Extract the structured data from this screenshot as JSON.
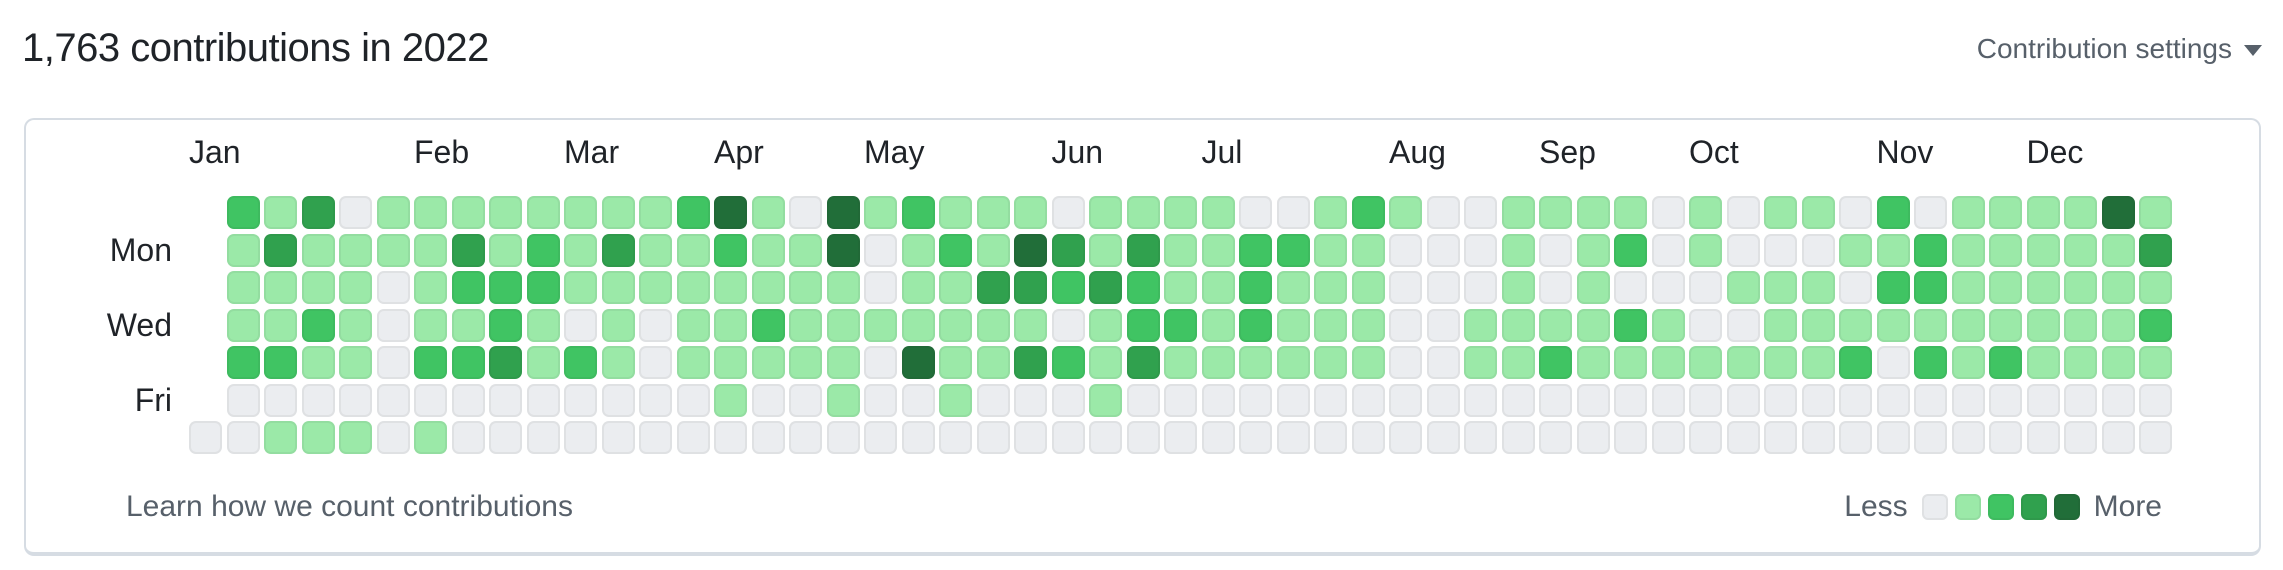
{
  "header": {
    "title": "1,763 contributions in 2022",
    "settings_label": "Contribution settings"
  },
  "footer": {
    "learn_link": "Learn how we count contributions",
    "legend_less": "Less",
    "legend_more": "More"
  },
  "colors": {
    "levels": [
      "#ebedf0",
      "#9be9a8",
      "#40c463",
      "#30a14e",
      "#216e39"
    ],
    "card_border": "#d6dce3",
    "text_primary": "#1f2328",
    "text_secondary": "#57606a"
  },
  "chart_data": {
    "type": "heatmap",
    "title": "1,763 contributions in 2022",
    "year": 2022,
    "total_contributions": 1763,
    "rows": [
      "Sun",
      "Mon",
      "Tue",
      "Wed",
      "Thu",
      "Fri",
      "Sat"
    ],
    "visible_row_labels": [
      {
        "label": "Mon",
        "row": 1
      },
      {
        "label": "Wed",
        "row": 3
      },
      {
        "label": "Fri",
        "row": 5
      }
    ],
    "months": [
      {
        "label": "Jan",
        "col": 0
      },
      {
        "label": "Feb",
        "col": 6
      },
      {
        "label": "Mar",
        "col": 10
      },
      {
        "label": "Apr",
        "col": 14
      },
      {
        "label": "May",
        "col": 18
      },
      {
        "label": "Jun",
        "col": 23
      },
      {
        "label": "Jul",
        "col": 27
      },
      {
        "label": "Aug",
        "col": 32
      },
      {
        "label": "Sep",
        "col": 36
      },
      {
        "label": "Oct",
        "col": 40
      },
      {
        "label": "Nov",
        "col": 45
      },
      {
        "label": "Dec",
        "col": 49
      }
    ],
    "levels_palette": [
      "#ebedf0",
      "#9be9a8",
      "#40c463",
      "#30a14e",
      "#216e39"
    ],
    "legend": {
      "less": "Less",
      "more": "More",
      "levels": [
        0,
        1,
        2,
        3,
        4
      ]
    },
    "weeks_note": "53 week columns; value -1 means day not in year (before Jan 1, 2022 which was a Saturday); each week array is [Sun,Mon,Tue,Wed,Thu,Fri,Sat]",
    "weeks": [
      [
        -1,
        -1,
        -1,
        -1,
        -1,
        -1,
        0
      ],
      [
        2,
        1,
        1,
        1,
        2,
        0,
        0
      ],
      [
        1,
        3,
        1,
        1,
        2,
        0,
        1
      ],
      [
        3,
        1,
        1,
        2,
        1,
        0,
        1
      ],
      [
        0,
        1,
        1,
        1,
        1,
        0,
        1
      ],
      [
        1,
        1,
        0,
        0,
        0,
        0,
        0
      ],
      [
        1,
        1,
        1,
        1,
        2,
        0,
        1
      ],
      [
        1,
        3,
        2,
        1,
        2,
        0,
        0
      ],
      [
        1,
        1,
        2,
        2,
        3,
        0,
        0
      ],
      [
        1,
        2,
        2,
        1,
        1,
        0,
        0
      ],
      [
        1,
        1,
        1,
        0,
        2,
        0,
        0
      ],
      [
        1,
        3,
        1,
        1,
        1,
        0,
        0
      ],
      [
        1,
        1,
        1,
        0,
        0,
        0,
        0
      ],
      [
        2,
        1,
        1,
        1,
        1,
        0,
        0
      ],
      [
        4,
        2,
        1,
        1,
        1,
        1,
        0
      ],
      [
        1,
        1,
        1,
        2,
        1,
        0,
        0
      ],
      [
        0,
        1,
        1,
        1,
        1,
        0,
        0
      ],
      [
        4,
        4,
        1,
        1,
        1,
        1,
        0
      ],
      [
        1,
        0,
        0,
        1,
        0,
        0,
        0
      ],
      [
        2,
        1,
        1,
        1,
        4,
        0,
        0
      ],
      [
        1,
        2,
        1,
        1,
        1,
        1,
        0
      ],
      [
        1,
        1,
        3,
        1,
        1,
        0,
        0
      ],
      [
        1,
        4,
        3,
        1,
        3,
        0,
        0
      ],
      [
        0,
        3,
        2,
        0,
        2,
        0,
        0
      ],
      [
        1,
        1,
        3,
        1,
        1,
        1,
        0
      ],
      [
        1,
        3,
        2,
        2,
        3,
        0,
        0
      ],
      [
        1,
        1,
        1,
        2,
        1,
        0,
        0
      ],
      [
        1,
        1,
        1,
        1,
        1,
        0,
        0
      ],
      [
        0,
        2,
        2,
        2,
        1,
        0,
        0
      ],
      [
        0,
        2,
        1,
        1,
        1,
        0,
        0
      ],
      [
        1,
        1,
        1,
        1,
        1,
        0,
        0
      ],
      [
        2,
        1,
        1,
        1,
        1,
        0,
        0
      ],
      [
        1,
        0,
        0,
        0,
        0,
        0,
        0
      ],
      [
        0,
        0,
        0,
        0,
        0,
        0,
        0
      ],
      [
        0,
        0,
        0,
        1,
        1,
        0,
        0
      ],
      [
        1,
        1,
        1,
        1,
        1,
        0,
        0
      ],
      [
        1,
        0,
        0,
        1,
        2,
        0,
        0
      ],
      [
        1,
        1,
        1,
        1,
        1,
        0,
        0
      ],
      [
        1,
        2,
        0,
        2,
        1,
        0,
        0
      ],
      [
        0,
        0,
        0,
        1,
        1,
        0,
        0
      ],
      [
        1,
        1,
        0,
        0,
        1,
        0,
        0
      ],
      [
        0,
        0,
        1,
        0,
        1,
        0,
        0
      ],
      [
        1,
        0,
        1,
        1,
        1,
        0,
        0
      ],
      [
        1,
        0,
        1,
        1,
        1,
        0,
        0
      ],
      [
        0,
        1,
        0,
        1,
        2,
        0,
        0
      ],
      [
        2,
        1,
        2,
        1,
        0,
        0,
        0
      ],
      [
        0,
        2,
        2,
        1,
        2,
        0,
        0
      ],
      [
        1,
        1,
        1,
        1,
        1,
        0,
        0
      ],
      [
        1,
        1,
        1,
        1,
        2,
        0,
        0
      ],
      [
        1,
        1,
        1,
        1,
        1,
        0,
        0
      ],
      [
        1,
        1,
        1,
        1,
        1,
        0,
        0
      ],
      [
        4,
        1,
        1,
        1,
        1,
        0,
        0
      ],
      [
        1,
        3,
        1,
        2,
        1,
        0,
        0
      ]
    ]
  }
}
